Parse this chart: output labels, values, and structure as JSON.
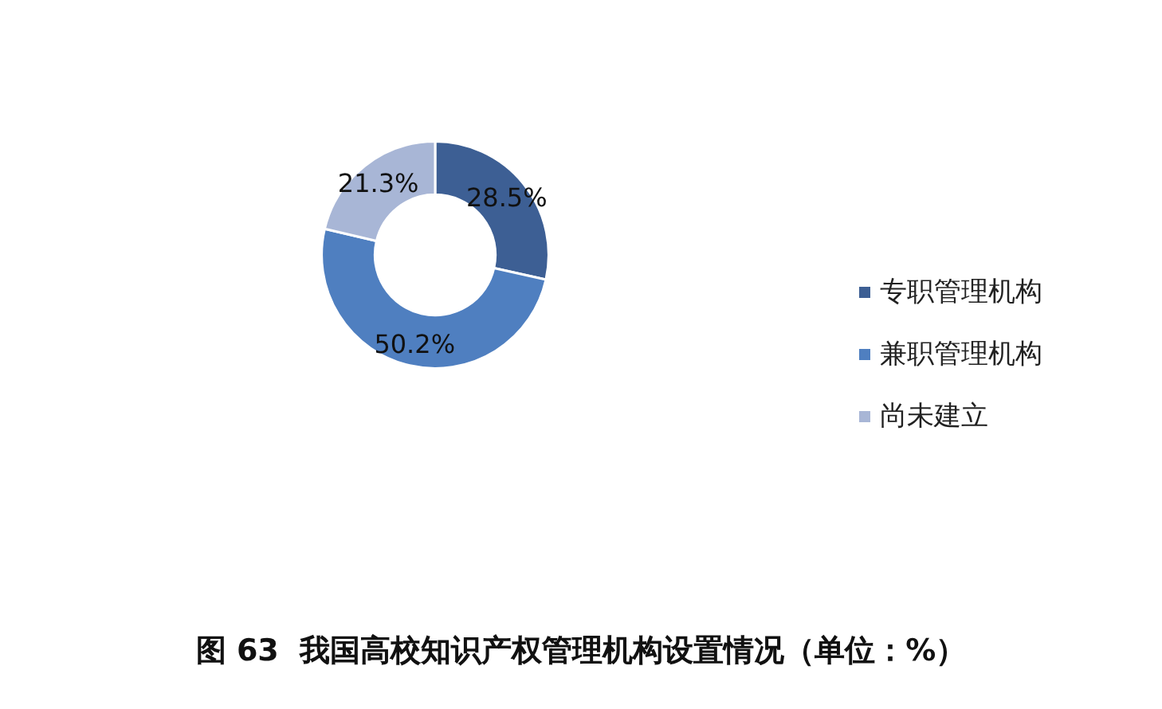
{
  "chart_data": {
    "type": "donut",
    "title": "图 63  我国高校知识产权管理机构设置情况（单位：%）",
    "categories": [
      "专职管理机构",
      "兼职管理机构",
      "尚未建立"
    ],
    "values": [
      28.5,
      50.2,
      21.3
    ],
    "value_labels": [
      "28.5%",
      "50.2%",
      "21.3%"
    ],
    "colors": [
      "#3d5f94",
      "#4f7fc0",
      "#a8b6d6"
    ],
    "legend": "right"
  }
}
